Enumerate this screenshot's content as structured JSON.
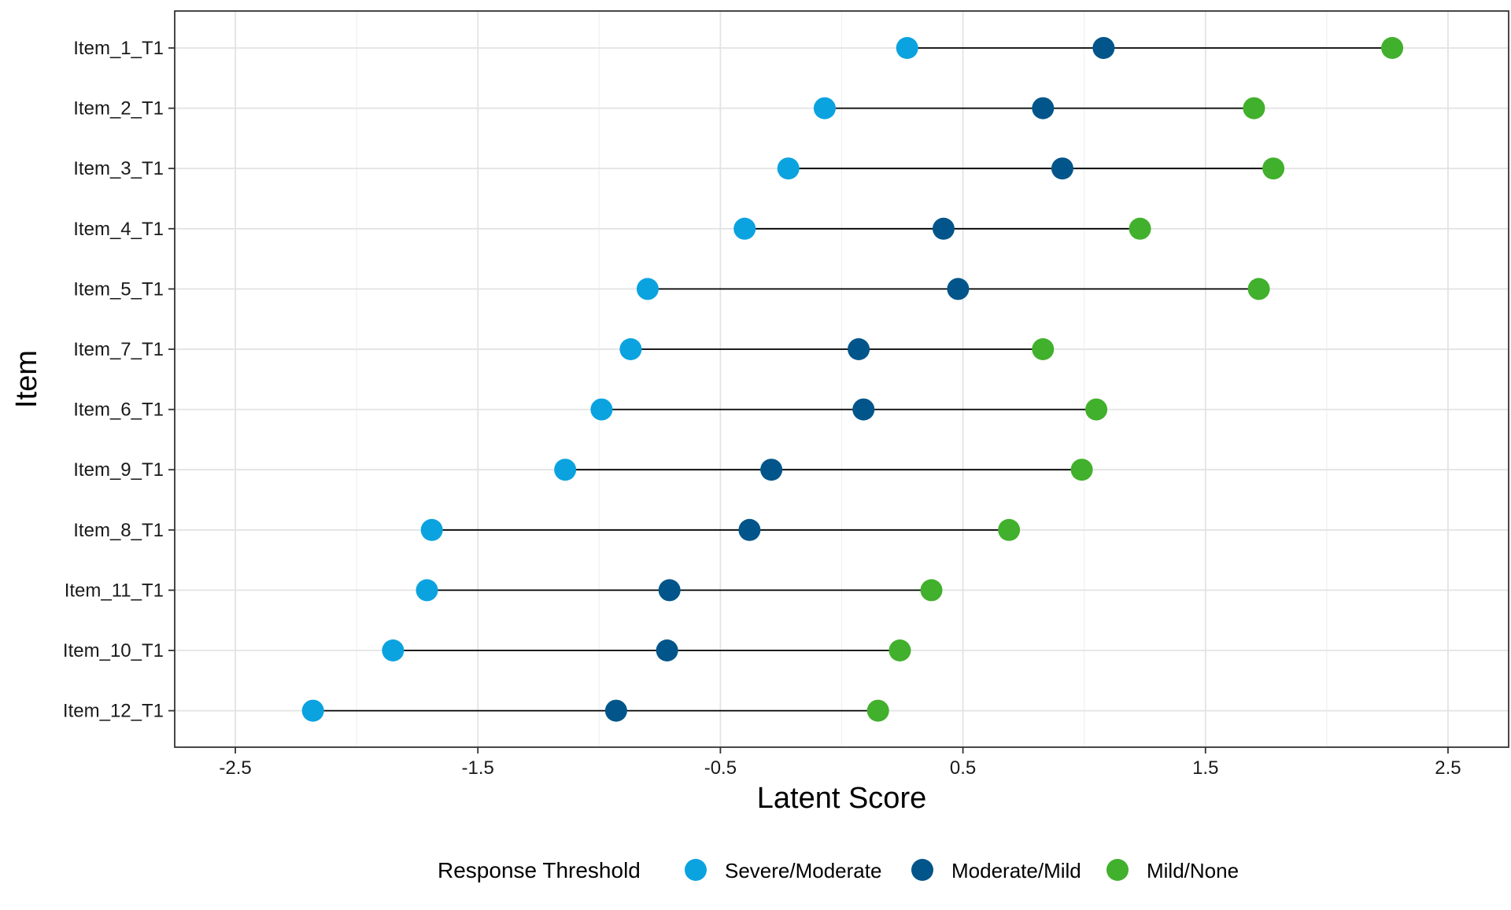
{
  "chart_data": {
    "type": "dumbbell",
    "xlabel": "Latent Score",
    "ylabel": "Item",
    "xlim": [
      -2.75,
      2.75
    ],
    "x_ticks": [
      -2.5,
      -1.5,
      -0.5,
      0.5,
      1.5,
      2.5
    ],
    "x_tick_labels": [
      "-2.5",
      "-1.5",
      "-0.5",
      "0.5",
      "1.5",
      "2.5"
    ],
    "grid": true,
    "legend_position": "bottom",
    "legend_title": "Response Threshold",
    "series": [
      {
        "name": "Severe/Moderate",
        "color": "#0aa3e0"
      },
      {
        "name": "Moderate/Mild",
        "color": "#01558a"
      },
      {
        "name": "Mild/None",
        "color": "#41b02c"
      }
    ],
    "categories": [
      "Item_1_T1",
      "Item_2_T1",
      "Item_3_T1",
      "Item_4_T1",
      "Item_5_T1",
      "Item_7_T1",
      "Item_6_T1",
      "Item_9_T1",
      "Item_8_T1",
      "Item_11_T1",
      "Item_10_T1",
      "Item_12_T1"
    ],
    "points": [
      [
        0.27,
        1.08,
        2.27
      ],
      [
        -0.07,
        0.83,
        1.7
      ],
      [
        -0.22,
        0.91,
        1.78
      ],
      [
        -0.4,
        0.42,
        1.23
      ],
      [
        -0.8,
        0.48,
        1.72
      ],
      [
        -0.87,
        0.07,
        0.83
      ],
      [
        -0.99,
        0.09,
        1.05
      ],
      [
        -1.14,
        -0.29,
        0.99
      ],
      [
        -1.69,
        -0.38,
        0.69
      ],
      [
        -1.71,
        -0.71,
        0.37
      ],
      [
        -1.85,
        -0.72,
        0.24
      ],
      [
        -2.18,
        -0.93,
        0.15
      ]
    ]
  }
}
